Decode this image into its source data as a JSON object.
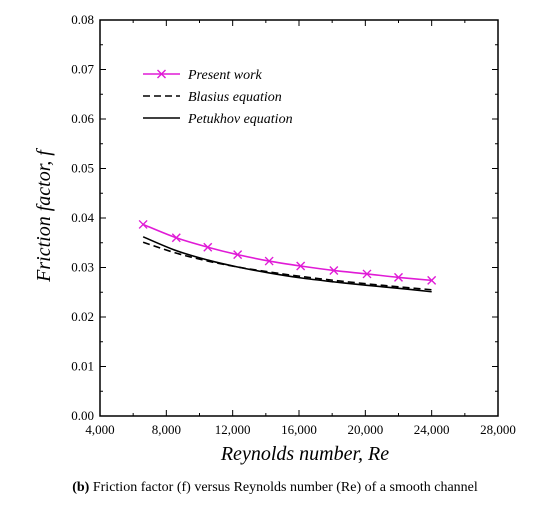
{
  "chart_data": {
    "type": "line",
    "title": "",
    "xlabel": "Reynolds number, Re",
    "ylabel": "Friction factor, f",
    "xlim": [
      4000,
      28000
    ],
    "ylim": [
      0,
      0.08
    ],
    "x_ticks": [
      4000,
      8000,
      12000,
      16000,
      20000,
      24000,
      28000
    ],
    "x_tick_labels": [
      "4,000",
      "8,000",
      "12,000",
      "16,000",
      "20,000",
      "24,000",
      "28,000"
    ],
    "y_ticks": [
      0,
      0.01,
      0.02,
      0.03,
      0.04,
      0.05,
      0.06,
      0.07,
      0.08
    ],
    "y_tick_labels": [
      "0.00",
      "0.01",
      "0.02",
      "0.03",
      "0.04",
      "0.05",
      "0.06",
      "0.07",
      "0.08"
    ],
    "grid": false,
    "legend_position": "top-left",
    "series": [
      {
        "name": "Present work",
        "color": "#e01bd6",
        "marker": "x",
        "dash": "solid",
        "x": [
          6600,
          8600,
          10500,
          12300,
          14200,
          16100,
          18100,
          20100,
          22000,
          24000
        ],
        "y": [
          0.0387,
          0.036,
          0.0341,
          0.0326,
          0.0313,
          0.0303,
          0.0294,
          0.0287,
          0.028,
          0.0274
        ]
      },
      {
        "name": "Blasius equation",
        "color": "#000000",
        "marker": "none",
        "dash": "dashed",
        "x": [
          6600,
          8600,
          10500,
          12300,
          14200,
          16100,
          18100,
          20100,
          22000,
          24000
        ],
        "y": [
          0.0351,
          0.0329,
          0.0313,
          0.0301,
          0.0291,
          0.0282,
          0.0274,
          0.0267,
          0.0261,
          0.0255
        ]
      },
      {
        "name": "Petukhov equation",
        "color": "#000000",
        "marker": "none",
        "dash": "solid",
        "x": [
          6600,
          8600,
          10500,
          12300,
          14200,
          16100,
          18100,
          20100,
          22000,
          24000
        ],
        "y": [
          0.0362,
          0.0334,
          0.0315,
          0.0301,
          0.0289,
          0.0279,
          0.0271,
          0.0264,
          0.0258,
          0.0251
        ]
      }
    ]
  },
  "caption": {
    "label": "(b)",
    "text": " Friction factor (f) versus Reynolds number (Re) of a smooth channel"
  }
}
